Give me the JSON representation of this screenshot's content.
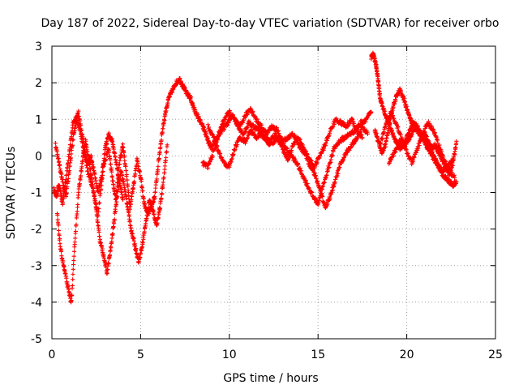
{
  "chart_data": {
    "type": "scatter",
    "title": "Day 187 of 2022, Sidereal Day-to-day VTEC variation (SDTVAR) for receiver orbo",
    "xlabel": "GPS time / hours",
    "ylabel": "SDTVAR / TECUs",
    "xlim": [
      0,
      25
    ],
    "ylim": [
      -5,
      3
    ],
    "xticks": [
      0,
      5,
      10,
      15,
      20,
      25
    ],
    "yticks": [
      -5,
      -4,
      -3,
      -2,
      -1,
      0,
      1,
      2,
      3
    ],
    "xtick_labels": [
      "0",
      "5",
      "10",
      "15",
      "20",
      "25"
    ],
    "ytick_labels": [
      "-5",
      "-4",
      "-3",
      "-2",
      "-1",
      "0",
      "1",
      "2",
      "3"
    ],
    "grid": true,
    "marker": "+",
    "marker_color": "#ff0000",
    "series": [
      {
        "name": "SDTVAR",
        "color": "#ff0000",
        "tracks": [
          {
            "x": [
              0.1,
              0.25,
              0.4,
              0.6,
              0.8,
              1.0,
              1.2,
              1.5,
              1.8,
              2.0,
              2.3,
              2.6,
              2.9,
              3.2,
              3.4,
              3.6,
              3.8,
              4.0,
              4.2,
              4.4,
              4.6,
              4.8,
              5.0,
              5.2,
              5.4,
              5.6,
              5.8,
              6.0,
              6.2,
              6.4,
              6.6,
              6.8,
              7.0,
              7.2,
              7.4,
              7.6,
              7.8,
              8.0,
              8.2,
              8.4,
              8.6,
              8.8,
              9.0,
              9.3,
              9.6,
              9.9,
              10.2,
              10.5,
              10.8,
              11.1,
              11.4,
              11.7,
              12.0,
              12.3,
              12.6,
              12.9,
              13.2,
              13.5,
              13.8,
              14.1,
              14.4,
              14.7,
              15.0,
              15.3,
              15.6,
              15.9,
              16.2,
              16.5,
              16.8,
              17.1,
              17.4,
              17.7,
              18.0
            ],
            "y": [
              -0.9,
              -1.1,
              -0.8,
              -1.3,
              -0.6,
              0.2,
              0.9,
              1.2,
              0.3,
              -0.4,
              -0.9,
              -1.6,
              -0.3,
              0.2,
              -0.6,
              -1.2,
              -0.2,
              0.3,
              -0.5,
              -1.4,
              -0.8,
              -0.1,
              -0.6,
              -1.3,
              -1.6,
              -1.4,
              -1.1,
              -0.2,
              0.6,
              1.2,
              1.6,
              1.8,
              2.0,
              2.1,
              1.9,
              1.7,
              1.6,
              1.3,
              1.1,
              0.9,
              0.7,
              0.4,
              0.2,
              0.5,
              0.7,
              0.9,
              1.1,
              0.8,
              0.6,
              0.9,
              0.8,
              0.7,
              0.5,
              0.4,
              0.6,
              0.4,
              0.2,
              0.0,
              -0.2,
              -0.5,
              -0.8,
              -1.1,
              -1.3,
              -0.8,
              -0.3,
              0.2,
              0.4,
              0.5,
              0.6,
              0.7,
              0.9,
              1.0,
              1.2
            ]
          },
          {
            "x": [
              0.3,
              0.5,
              0.7,
              0.9,
              1.1,
              1.3,
              1.5,
              1.7,
              1.9,
              2.1,
              2.3,
              2.5,
              2.7,
              2.9,
              3.1,
              3.3,
              3.5,
              3.7,
              3.9,
              4.1,
              4.3,
              4.5,
              4.7,
              4.9,
              5.1,
              5.3,
              5.5,
              5.7,
              5.9,
              6.1,
              6.3,
              6.5
            ],
            "y": [
              -1.6,
              -2.6,
              -3.1,
              -3.6,
              -4.0,
              -2.3,
              -1.0,
              -0.2,
              0.4,
              -0.2,
              -0.8,
              -1.5,
              -2.3,
              -2.7,
              -3.2,
              -2.6,
              -1.8,
              -1.0,
              -0.4,
              -0.9,
              -1.5,
              -2.1,
              -2.5,
              -2.9,
              -2.4,
              -1.8,
              -1.2,
              -1.5,
              -1.9,
              -1.4,
              -0.6,
              0.3
            ]
          },
          {
            "x": [
              0.2,
              0.4,
              0.6,
              0.8,
              1.0,
              1.2,
              1.4,
              1.6,
              1.8,
              2.0,
              2.2,
              2.4,
              2.6,
              2.8,
              3.0,
              3.2,
              3.4,
              3.6,
              3.8,
              4.0
            ],
            "y": [
              0.3,
              -0.2,
              -0.7,
              -1.1,
              -0.3,
              0.5,
              1.0,
              0.7,
              0.1,
              -0.2,
              0.0,
              -0.5,
              -1.0,
              -0.6,
              0.2,
              0.6,
              0.4,
              -0.1,
              -0.7,
              -1.2
            ]
          },
          {
            "x": [
              8.5,
              8.8,
              9.1,
              9.4,
              9.7,
              10.0,
              10.3,
              10.6,
              10.9,
              11.2,
              11.5,
              11.8,
              12.1,
              12.4,
              12.7,
              13.0,
              13.3,
              13.6,
              13.9,
              14.2,
              14.5,
              14.8,
              15.1,
              15.4,
              15.7,
              16.0,
              16.3,
              16.6,
              16.9,
              17.2,
              17.5,
              17.8
            ],
            "y": [
              -0.2,
              -0.3,
              0.1,
              0.6,
              1.0,
              1.2,
              1.0,
              0.8,
              1.1,
              1.3,
              1.0,
              0.8,
              0.6,
              0.8,
              0.7,
              0.4,
              0.5,
              0.6,
              0.3,
              0.1,
              -0.2,
              -0.5,
              -0.9,
              -1.4,
              -1.1,
              -0.6,
              -0.2,
              0.1,
              0.3,
              0.5,
              0.8,
              0.6
            ]
          },
          {
            "x": [
              8.8,
              9.1,
              9.4,
              9.7,
              10.0,
              10.3,
              10.6,
              10.9,
              11.2,
              11.5,
              11.8,
              12.1,
              12.4,
              12.7,
              13.0,
              13.3,
              13.6,
              13.9,
              14.2,
              14.5,
              14.8,
              15.1,
              15.4,
              15.7,
              16.0,
              16.3,
              16.6,
              16.9,
              17.2,
              17.5
            ],
            "y": [
              0.8,
              0.5,
              0.1,
              -0.2,
              -0.3,
              0.2,
              0.5,
              0.4,
              0.7,
              0.5,
              0.6,
              0.4,
              0.3,
              0.5,
              0.2,
              -0.1,
              0.3,
              0.5,
              0.2,
              -0.1,
              -0.3,
              0.0,
              0.3,
              0.7,
              1.0,
              0.9,
              0.8,
              1.0,
              0.7,
              0.5
            ]
          },
          {
            "x": [
              18.0,
              18.1,
              18.2,
              18.3,
              18.4,
              18.5,
              18.6,
              18.8,
              19.0,
              19.2,
              19.4,
              19.6,
              19.8,
              20.0,
              20.2,
              20.4,
              20.6,
              20.8,
              21.0,
              21.2,
              21.4,
              21.6,
              21.8,
              22.0,
              22.2,
              22.4,
              22.6,
              22.8
            ],
            "y": [
              2.7,
              2.8,
              2.6,
              2.4,
              2.0,
              1.6,
              1.4,
              1.1,
              0.9,
              0.6,
              0.4,
              0.2,
              0.3,
              0.5,
              0.7,
              0.9,
              0.8,
              0.6,
              0.4,
              0.2,
              0.1,
              -0.1,
              -0.3,
              -0.5,
              -0.6,
              -0.7,
              -0.8,
              -0.7
            ]
          },
          {
            "x": [
              18.2,
              18.4,
              18.6,
              18.8,
              19.0,
              19.2,
              19.4,
              19.6,
              19.8,
              20.0,
              20.2,
              20.4,
              20.6,
              20.8,
              21.0,
              21.2,
              21.4,
              21.6,
              21.8,
              22.0,
              22.2,
              22.4,
              22.6,
              22.8
            ],
            "y": [
              0.7,
              0.4,
              0.1,
              0.3,
              0.8,
              1.3,
              1.6,
              1.8,
              1.6,
              1.3,
              1.0,
              0.8,
              0.7,
              0.5,
              0.6,
              0.4,
              0.2,
              0.3,
              0.1,
              -0.1,
              -0.3,
              -0.5,
              -0.2,
              0.4
            ]
          },
          {
            "x": [
              18.5,
              18.8,
              19.1,
              19.4,
              19.7,
              20.0,
              20.3,
              20.6,
              20.9,
              21.2,
              21.5,
              21.8,
              22.1,
              22.4,
              22.7
            ],
            "y": [
              0.3,
              0.8,
              1.2,
              0.9,
              0.5,
              0.1,
              -0.2,
              0.2,
              0.6,
              0.9,
              0.7,
              0.3,
              -0.1,
              -0.4,
              -0.6
            ]
          },
          {
            "x": [
              19.0,
              19.3,
              19.6,
              19.9,
              20.2,
              20.5,
              20.8,
              21.1,
              21.4,
              21.7,
              22.0,
              22.3,
              22.6
            ],
            "y": [
              -0.2,
              0.1,
              0.4,
              0.3,
              0.5,
              0.8,
              0.6,
              0.3,
              0.0,
              -0.2,
              -0.4,
              -0.3,
              -0.1
            ]
          }
        ]
      }
    ]
  }
}
